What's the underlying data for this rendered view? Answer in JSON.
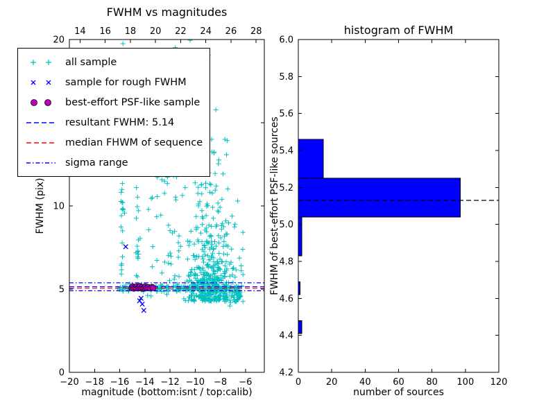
{
  "figure": {
    "background": "#ffffff"
  },
  "legend": {
    "entries": [
      {
        "label": "all sample",
        "marker": "plus",
        "color": "#00bfbf"
      },
      {
        "label": "sample for rough FWHM",
        "marker": "x",
        "color": "#0000ff"
      },
      {
        "label": "best-effort PSF-like sample",
        "marker": "circle",
        "color": "#bf00bf"
      },
      {
        "label": "resultant FWHM: 5.14",
        "marker": "dashed-line",
        "color": "#0000ff"
      },
      {
        "label": "median FHWM of sequence",
        "marker": "dashed-line",
        "color": "#ff0000"
      },
      {
        "label": "sigma range",
        "marker": "dashdot-line",
        "color": "#0000ff"
      }
    ]
  },
  "chart_data": [
    {
      "type": "scatter",
      "title": "FWHM vs magnitudes",
      "xlabel": "magnitude (bottom:isnt / top:calib)",
      "ylabel": "FWHM (pix)",
      "xlim": [
        -20,
        -4.5
      ],
      "ylim": [
        0,
        20
      ],
      "top_xlim": [
        13.15,
        28.65
      ],
      "x_ticks": [
        {
          "v": -20,
          "label": "−20"
        },
        {
          "v": -18,
          "label": "−18"
        },
        {
          "v": -16,
          "label": "−16"
        },
        {
          "v": -14,
          "label": "−14"
        },
        {
          "v": -12,
          "label": "−12"
        },
        {
          "v": -10,
          "label": "−10"
        },
        {
          "v": -8,
          "label": "−8"
        },
        {
          "v": -6,
          "label": "−6"
        }
      ],
      "top_ticks": [
        {
          "v": 14,
          "label": "14"
        },
        {
          "v": 16,
          "label": "16"
        },
        {
          "v": 18,
          "label": "18"
        },
        {
          "v": 20,
          "label": "20"
        },
        {
          "v": 22,
          "label": "22"
        },
        {
          "v": 24,
          "label": "24"
        },
        {
          "v": 26,
          "label": "26"
        },
        {
          "v": 28,
          "label": "28"
        }
      ],
      "y_ticks": [
        {
          "v": 0,
          "label": "0"
        },
        {
          "v": 5,
          "label": "5"
        },
        {
          "v": 10,
          "label": "10"
        },
        {
          "v": 15,
          "label": "15"
        },
        {
          "v": 20,
          "label": "20"
        }
      ],
      "series": [
        {
          "name": "all sample",
          "marker": "plus",
          "color": "#00bfbf",
          "clusters": [
            {
              "count": 45,
              "mag": {
                "dist": "gauss",
                "mean": -15.82,
                "sd": 0.07
              },
              "fwhm": {
                "dist": "uniform",
                "min": 4.8,
                "max": 20
              }
            },
            {
              "count": 34,
              "mag": {
                "dist": "gauss",
                "mean": -14.55,
                "sd": 0.09
              },
              "fwhm": {
                "dist": "uniform",
                "min": 4.8,
                "max": 19.6
              }
            },
            {
              "count": 48,
              "mag": {
                "dist": "uniform",
                "min": -13.8,
                "max": -11.2
              },
              "fwhm": {
                "dist": "uniform",
                "min": 4.5,
                "max": 13.5
              }
            },
            {
              "count": 430,
              "mag": {
                "dist": "gauss",
                "mean": -8.8,
                "sd": 1.0,
                "min": -12.5,
                "max": -6.2
              },
              "fwhm": {
                "dist": "expshift",
                "shift": 4.25,
                "scale": 1.6,
                "min": 3.8,
                "max": 14
              }
            },
            {
              "count": 130,
              "mag": {
                "dist": "uniform",
                "min": -16.2,
                "max": -6.3
              },
              "fwhm": {
                "dist": "gauss",
                "mean": 5.05,
                "sd": 0.12
              }
            },
            {
              "count": 28,
              "mag": {
                "dist": "uniform",
                "min": -12.2,
                "max": -8.3
              },
              "fwhm": {
                "dist": "uniform",
                "min": 13.5,
                "max": 20
              }
            },
            {
              "count": 40,
              "mag": {
                "dist": "uniform",
                "min": -8.0,
                "max": -6.3
              },
              "fwhm": {
                "dist": "gauss",
                "mean": 4.65,
                "sd": 0.3
              }
            },
            {
              "count": 60,
              "mag": {
                "dist": "gauss",
                "mean": -9.0,
                "sd": 0.9,
                "min": -11.5,
                "max": -6.5
              },
              "fwhm": {
                "dist": "uniform",
                "min": 7.5,
                "max": 13.8
              }
            }
          ]
        },
        {
          "name": "sample for rough FWHM",
          "marker": "x",
          "color": "#0000ff",
          "points": [
            [
              -15.52,
              7.55
            ],
            [
              -14.42,
              4.3
            ],
            [
              -14.3,
              4.45
            ],
            [
              -14.2,
              4.1
            ],
            [
              -14.08,
              3.72
            ]
          ]
        },
        {
          "name": "best-effort PSF-like sample",
          "marker": "circle",
          "color": "#bf00bf",
          "points": [
            [
              -15.05,
              5.08
            ],
            [
              -14.97,
              5.16
            ],
            [
              -14.88,
              5.04
            ],
            [
              -14.8,
              5.12
            ],
            [
              -14.72,
              5.07
            ],
            [
              -14.63,
              5.15
            ],
            [
              -14.55,
              5.05
            ],
            [
              -14.47,
              5.11
            ],
            [
              -14.38,
              5.17
            ],
            [
              -14.3,
              5.06
            ],
            [
              -14.22,
              5.12
            ],
            [
              -14.13,
              5.04
            ],
            [
              -14.05,
              5.1
            ],
            [
              -13.95,
              5.15
            ],
            [
              -13.85,
              5.07
            ],
            [
              -13.72,
              5.11
            ],
            [
              -13.58,
              5.06
            ],
            [
              -13.42,
              5.12
            ],
            [
              -13.33,
              5.08
            ]
          ]
        }
      ],
      "lines": [
        {
          "name": "sigma range upper",
          "y": 5.38,
          "style": "dashdot",
          "color": "#0000ff"
        },
        {
          "name": "resultant FWHM: 5.14",
          "y": 5.14,
          "style": "dashed",
          "color": "#0000ff"
        },
        {
          "name": "median FHWM of sequence",
          "y": 5.05,
          "style": "dashed",
          "color": "#ff0000"
        },
        {
          "name": "sigma range lower",
          "y": 4.9,
          "style": "dashdot",
          "color": "#0000ff"
        }
      ]
    },
    {
      "type": "bar",
      "orientation": "horizontal",
      "title": "histogram of FWHM",
      "xlabel": "number of sources",
      "ylabel": "FWHM of best-effort PSF-like sources",
      "xlim": [
        0,
        120
      ],
      "ylim": [
        4.2,
        6.0
      ],
      "x_ticks": [
        {
          "v": 0,
          "label": "0"
        },
        {
          "v": 20,
          "label": "20"
        },
        {
          "v": 40,
          "label": "40"
        },
        {
          "v": 60,
          "label": "60"
        },
        {
          "v": 80,
          "label": "80"
        },
        {
          "v": 100,
          "label": "100"
        },
        {
          "v": 120,
          "label": "120"
        }
      ],
      "y_ticks": [
        {
          "v": 4.2,
          "label": "4.2"
        },
        {
          "v": 4.4,
          "label": "4.4"
        },
        {
          "v": 4.6,
          "label": "4.6"
        },
        {
          "v": 4.8,
          "label": "4.8"
        },
        {
          "v": 5.0,
          "label": "5.0"
        },
        {
          "v": 5.2,
          "label": "5.2"
        },
        {
          "v": 5.4,
          "label": "5.4"
        },
        {
          "v": 5.6,
          "label": "5.6"
        },
        {
          "v": 5.8,
          "label": "5.8"
        },
        {
          "v": 6.0,
          "label": "6.0"
        }
      ],
      "bar_color": "#0000ff",
      "bins": [
        {
          "from": 4.41,
          "to": 4.48,
          "count": 2
        },
        {
          "from": 4.62,
          "to": 4.69,
          "count": 1
        },
        {
          "from": 4.83,
          "to": 5.04,
          "count": 2
        },
        {
          "from": 5.04,
          "to": 5.25,
          "count": 97
        },
        {
          "from": 5.25,
          "to": 5.46,
          "count": 15
        }
      ],
      "median_line": {
        "y": 5.13,
        "style": "dashed",
        "color": "#000000"
      }
    }
  ]
}
